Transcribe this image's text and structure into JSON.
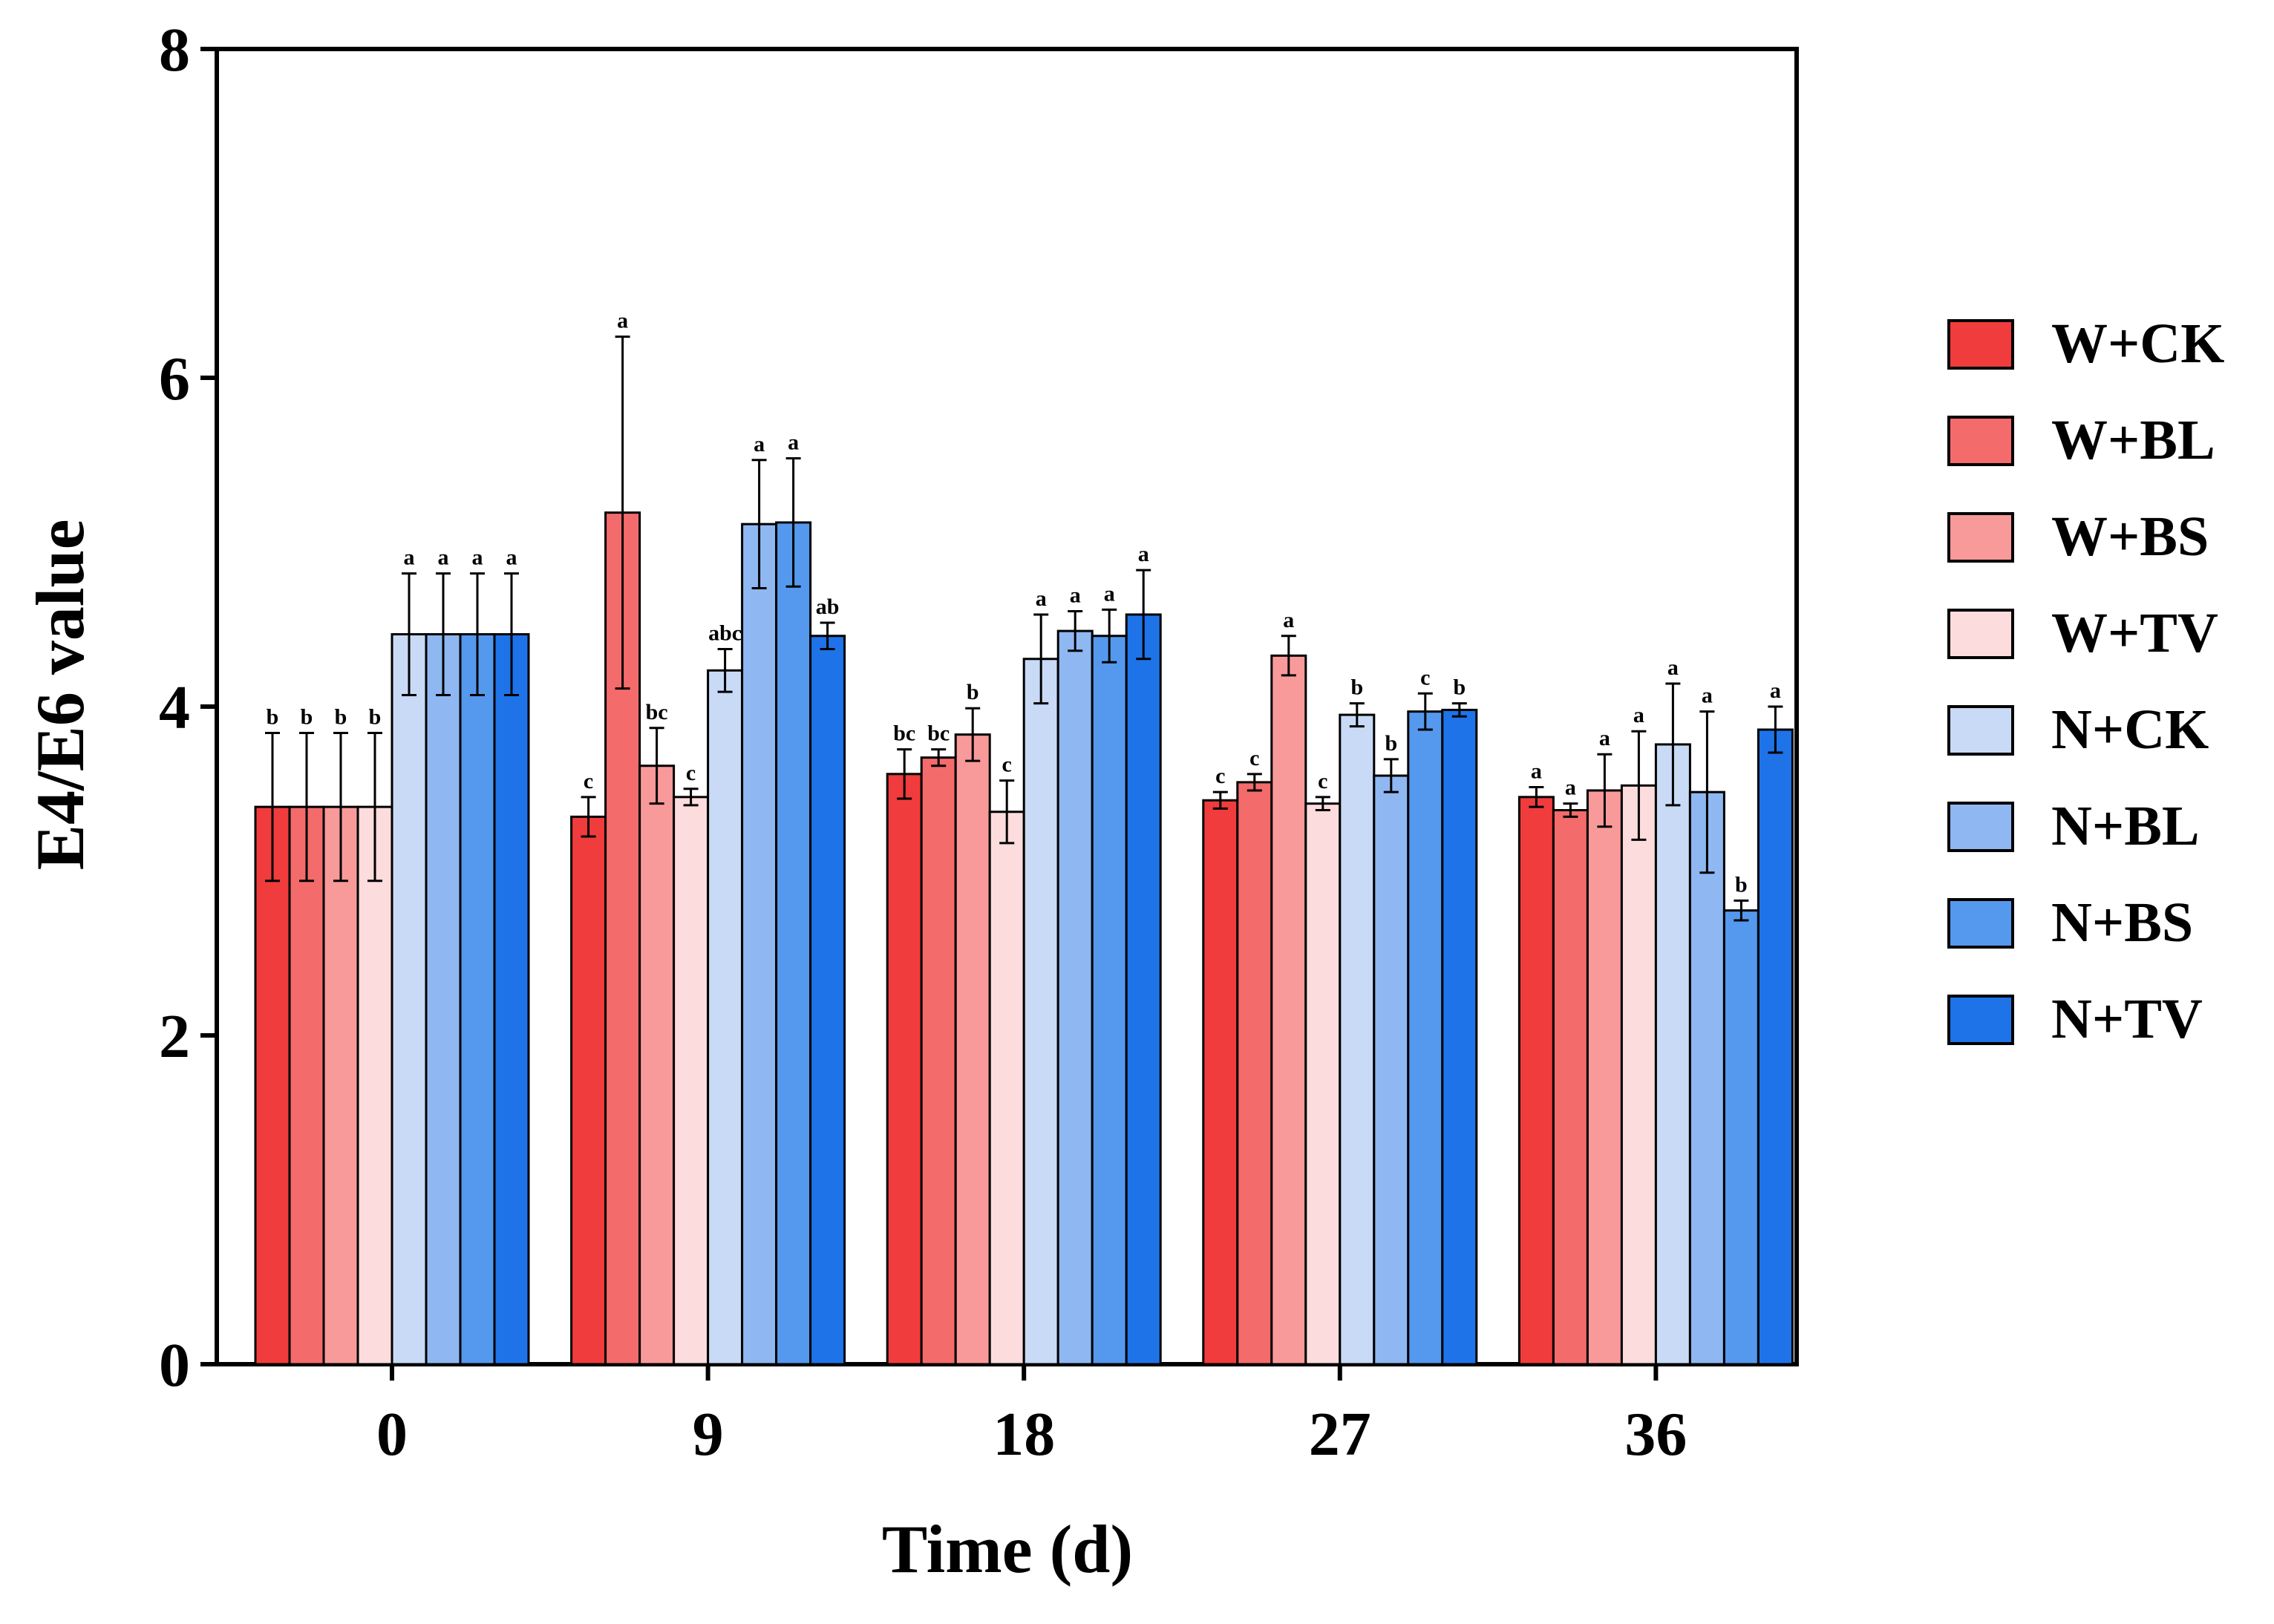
{
  "chart_data": {
    "type": "bar",
    "title": "",
    "xlabel": "Time (d)",
    "ylabel": "E4/E6 value",
    "ylim": [
      0,
      8
    ],
    "yticks": [
      0,
      2,
      4,
      6,
      8
    ],
    "categories": [
      "0",
      "9",
      "18",
      "27",
      "36"
    ],
    "legend_position": "right",
    "series": [
      {
        "name": "W+CK",
        "color": "#f03c3c",
        "values": [
          3.39,
          3.33,
          3.59,
          3.43,
          3.45
        ],
        "errors": [
          0.45,
          0.12,
          0.15,
          0.05,
          0.06
        ],
        "labels": [
          "b",
          "c",
          "bc",
          "c",
          "a"
        ]
      },
      {
        "name": "W+BL",
        "color": "#f46b6b",
        "values": [
          3.39,
          5.18,
          3.69,
          3.54,
          3.37
        ],
        "errors": [
          0.45,
          1.07,
          0.05,
          0.05,
          0.04
        ],
        "labels": [
          "b",
          "a",
          "bc",
          "c",
          "a"
        ]
      },
      {
        "name": "W+BS",
        "color": "#f99a9a",
        "values": [
          3.39,
          3.64,
          3.83,
          4.31,
          3.49
        ],
        "errors": [
          0.45,
          0.23,
          0.16,
          0.12,
          0.22
        ],
        "labels": [
          "b",
          "bc",
          "b",
          "a",
          "a"
        ]
      },
      {
        "name": "W+TV",
        "color": "#fcdcdc",
        "values": [
          3.39,
          3.45,
          3.36,
          3.41,
          3.52
        ],
        "errors": [
          0.45,
          0.05,
          0.19,
          0.04,
          0.33
        ],
        "labels": [
          "b",
          "c",
          "c",
          "c",
          "a"
        ]
      },
      {
        "name": "N+CK",
        "color": "#c8daf5",
        "values": [
          4.44,
          4.22,
          4.29,
          3.95,
          3.77
        ],
        "errors": [
          0.37,
          0.13,
          0.27,
          0.07,
          0.37
        ],
        "labels": [
          "a",
          "abc",
          "a",
          "b",
          "a"
        ]
      },
      {
        "name": "N+BL",
        "color": "#8fb8f2",
        "values": [
          4.44,
          5.11,
          4.46,
          3.58,
          3.48
        ],
        "errors": [
          0.37,
          0.39,
          0.12,
          0.1,
          0.49
        ],
        "labels": [
          "a",
          "a",
          "a",
          "b",
          "a"
        ]
      },
      {
        "name": "N+BS",
        "color": "#5599ee",
        "values": [
          4.44,
          5.12,
          4.43,
          3.97,
          2.76
        ],
        "errors": [
          0.37,
          0.39,
          0.16,
          0.11,
          0.06
        ],
        "labels": [
          "a",
          "a",
          "a",
          "c",
          "b"
        ]
      },
      {
        "name": "N+TV",
        "color": "#1f73e8",
        "values": [
          4.44,
          4.43,
          4.56,
          3.98,
          3.86
        ],
        "errors": [
          0.37,
          0.08,
          0.27,
          0.04,
          0.14
        ],
        "labels": [
          "a",
          "ab",
          "a",
          "b",
          "a"
        ]
      }
    ]
  }
}
